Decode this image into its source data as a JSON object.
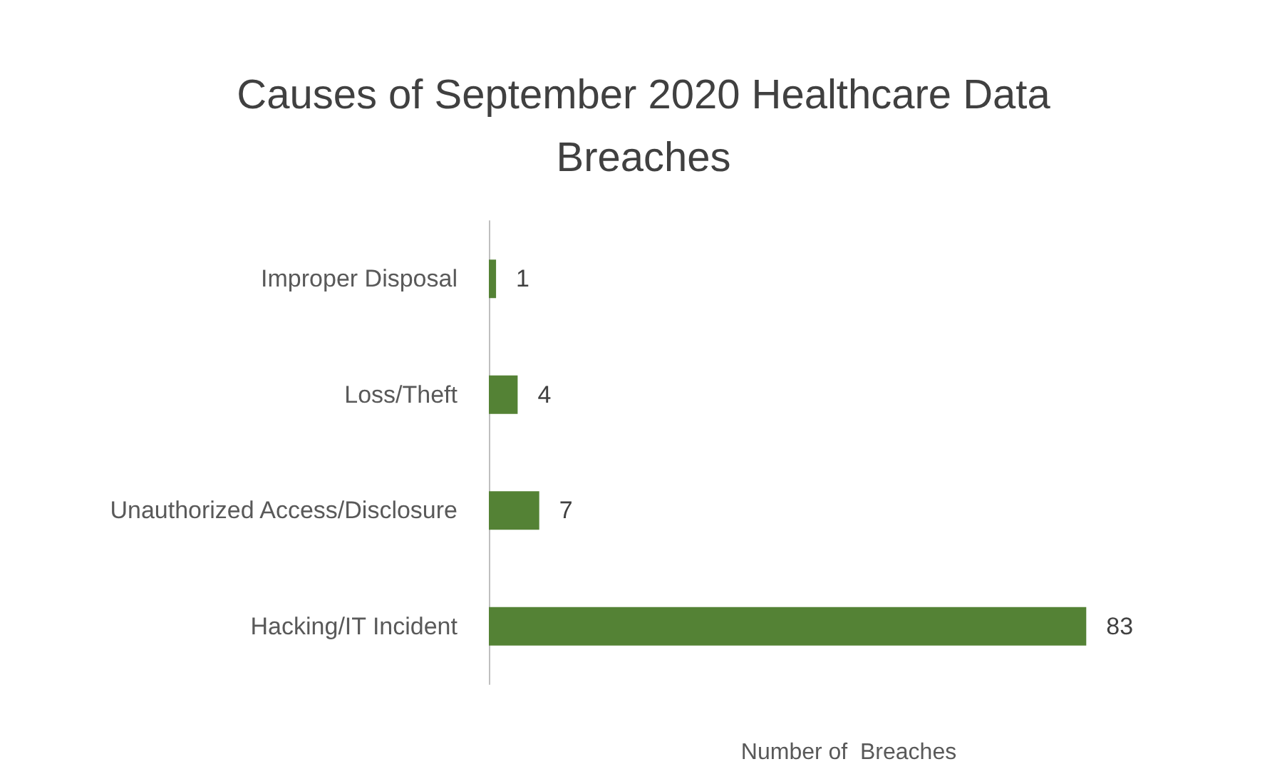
{
  "chart_data": {
    "type": "bar",
    "orientation": "horizontal",
    "title": "Causes of September 2020 Healthcare Data\nBreaches",
    "categories": [
      "Improper Disposal",
      "Loss/Theft",
      "Unauthorized Access/Disclosure",
      "Hacking/IT Incident"
    ],
    "values": [
      1,
      4,
      7,
      83
    ],
    "color": "#548235",
    "xlabel": "Number of  Breaches",
    "data_labels": true,
    "tick_labels": "y",
    "grid": false
  }
}
